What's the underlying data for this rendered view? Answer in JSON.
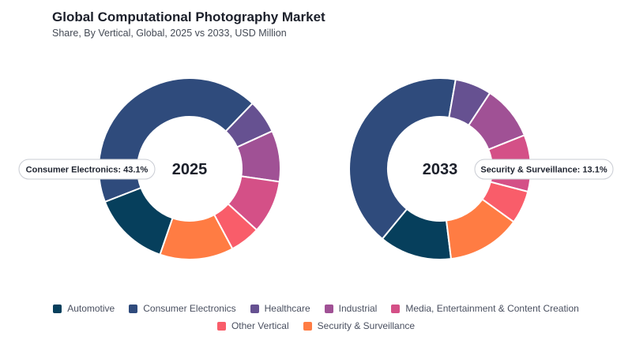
{
  "header": {
    "title": "Global Computational Photography Market",
    "subtitle": "Share, By Vertical, Global, 2025 vs 2033, USD Million"
  },
  "chart_data": {
    "type": "pie",
    "title": "Global Computational Photography Market",
    "subtitle": "Share, By Vertical, Global, 2025 vs 2033, USD Million",
    "categories": [
      "Automotive",
      "Consumer Electronics",
      "Healthcare",
      "Industrial",
      "Media, Entertainment & Content Creation",
      "Other Vertical",
      "Security & Surveillance"
    ],
    "colors": [
      "#063f5c",
      "#2f4b7c",
      "#665191",
      "#a05195",
      "#d45087",
      "#f95d6a",
      "#ff7c43"
    ],
    "series": [
      {
        "name": "2025",
        "values": [
          13.8,
          43.1,
          6.0,
          9.1,
          9.5,
          5.4,
          13.1
        ]
      },
      {
        "name": "2033",
        "values": [
          12.9,
          41.8,
          6.5,
          9.7,
          10.1,
          5.9,
          13.1
        ]
      }
    ],
    "callouts": [
      {
        "text": "Consumer Electronics: 43.1%"
      },
      {
        "text": "Security & Surveillance: 13.1%"
      }
    ],
    "legend_position": "bottom",
    "grid": false
  }
}
